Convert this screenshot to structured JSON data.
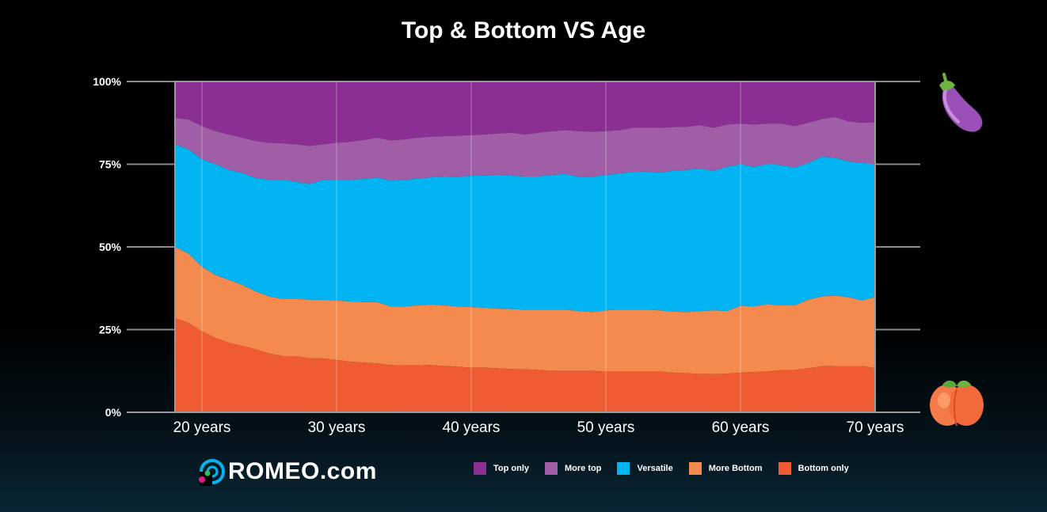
{
  "title": "Top & Bottom VS Age",
  "brand": {
    "name": "ROMEO",
    "suffix": ".com"
  },
  "icons": {
    "top": "eggplant-icon",
    "bottom": "peach-icon",
    "logo": "romeo-logo-icon"
  },
  "colors": {
    "top_only": "#8b2f94",
    "more_top": "#a05ea7",
    "versatile": "#03b4f2",
    "more_bottom": "#f58a4f",
    "bottom_only": "#ef5b32",
    "grid": "#8a8a8a"
  },
  "chart_data": {
    "type": "area",
    "stacked": true,
    "normalized": true,
    "title": "Top & Bottom VS Age",
    "xlabel": "",
    "ylabel": "",
    "x_range": [
      18,
      70
    ],
    "y_range": [
      0,
      100
    ],
    "x_ticks": [
      {
        "value": 20,
        "label": "20 years"
      },
      {
        "value": 30,
        "label": "30 years"
      },
      {
        "value": 40,
        "label": "40 years"
      },
      {
        "value": 50,
        "label": "50 years"
      },
      {
        "value": 60,
        "label": "60 years"
      },
      {
        "value": 70,
        "label": "70 years"
      }
    ],
    "y_ticks": [
      {
        "value": 0,
        "label": "0%"
      },
      {
        "value": 25,
        "label": "25%"
      },
      {
        "value": 50,
        "label": "50%"
      },
      {
        "value": 75,
        "label": "75%"
      },
      {
        "value": 100,
        "label": "100%"
      }
    ],
    "grid": true,
    "legend_position": "bottom",
    "x": [
      18,
      19,
      20,
      21,
      22,
      23,
      24,
      25,
      26,
      27,
      28,
      29,
      30,
      31,
      32,
      33,
      34,
      35,
      36,
      37,
      38,
      39,
      40,
      41,
      42,
      43,
      44,
      45,
      46,
      47,
      48,
      49,
      50,
      51,
      52,
      53,
      54,
      55,
      56,
      57,
      58,
      59,
      60,
      61,
      62,
      63,
      64,
      65,
      66,
      67,
      68,
      69,
      70
    ],
    "cumulative_boundaries": {
      "bottom_only_top": [
        28.5,
        27,
        24.5,
        22.5,
        21,
        20,
        19,
        17.8,
        17,
        17,
        16.3,
        16.3,
        15.8,
        15.3,
        15,
        14.8,
        14.3,
        14.2,
        14.2,
        14.3,
        14,
        13.8,
        13.5,
        13.5,
        13.3,
        13.1,
        13,
        12.8,
        12.5,
        12.5,
        12.5,
        12.5,
        12.3,
        12.3,
        12.3,
        12.3,
        12.3,
        12,
        11.8,
        11.6,
        11.5,
        11.7,
        12,
        12.2,
        12.3,
        12.8,
        12.8,
        13.3,
        13.9,
        14,
        14,
        14,
        13.4
      ],
      "more_bottom_top": [
        50,
        48,
        44,
        41.5,
        40,
        38.5,
        36.5,
        35,
        34.3,
        34.3,
        34,
        34,
        33.8,
        33.5,
        33.3,
        33.3,
        32,
        32,
        32.3,
        32.6,
        32.3,
        32,
        31.8,
        31.6,
        31.3,
        31.2,
        31,
        31,
        31,
        31,
        30.6,
        30.3,
        30.8,
        31,
        31,
        31,
        30.8,
        30.4,
        30.3,
        30.6,
        30.8,
        30.6,
        32.2,
        32,
        32.7,
        32.3,
        32.3,
        34,
        35,
        35.3,
        34.8,
        33.8,
        34.8
      ],
      "versatile_top": [
        81,
        79.5,
        76.5,
        75,
        73.3,
        72.3,
        70.8,
        70.3,
        70.3,
        69.7,
        69,
        70.3,
        70.3,
        70.3,
        70.5,
        71,
        70,
        70.2,
        70.7,
        71,
        71.3,
        71.2,
        71.5,
        71.6,
        71.8,
        71.5,
        71.3,
        71.3,
        71.8,
        72,
        71.2,
        71.2,
        71.7,
        72.2,
        72.7,
        72.8,
        72.5,
        73,
        73.3,
        73.6,
        73,
        74.2,
        75,
        74.2,
        75,
        74.7,
        74,
        75.3,
        77.2,
        77,
        75.8,
        75.4,
        75
      ],
      "more_top_top": [
        89,
        88.5,
        86.5,
        85,
        84,
        83,
        82,
        81.5,
        81.3,
        81,
        80.5,
        81,
        81.5,
        81.8,
        82.3,
        83,
        82.2,
        82.5,
        83,
        83.3,
        83.5,
        83.6,
        83.8,
        84,
        84.3,
        84.5,
        84,
        84.5,
        85,
        85.3,
        85,
        84.8,
        85,
        85.3,
        86,
        86,
        86,
        86.2,
        86.3,
        86.8,
        86,
        87,
        87.3,
        87,
        87.3,
        87.3,
        86.5,
        87.5,
        88.6,
        89.3,
        88,
        87.5,
        87.7
      ],
      "top_only_top": [
        100,
        100,
        100,
        100,
        100,
        100,
        100,
        100,
        100,
        100,
        100,
        100,
        100,
        100,
        100,
        100,
        100,
        100,
        100,
        100,
        100,
        100,
        100,
        100,
        100,
        100,
        100,
        100,
        100,
        100,
        100,
        100,
        100,
        100,
        100,
        100,
        100,
        100,
        100,
        100,
        100,
        100,
        100,
        100,
        100,
        100,
        100,
        100,
        100,
        100,
        100,
        100,
        100
      ]
    },
    "series": [
      {
        "name": "Top only",
        "key": "top_only",
        "upper": "top_only_top",
        "lower": "more_top_top"
      },
      {
        "name": "More top",
        "key": "more_top",
        "upper": "more_top_top",
        "lower": "versatile_top"
      },
      {
        "name": "Versatile",
        "key": "versatile",
        "upper": "versatile_top",
        "lower": "more_bottom_top"
      },
      {
        "name": "More Bottom",
        "key": "more_bottom",
        "upper": "more_bottom_top",
        "lower": "bottom_only_top"
      },
      {
        "name": "Bottom only",
        "key": "bottom_only",
        "upper": "bottom_only_top",
        "lower": null
      }
    ]
  }
}
